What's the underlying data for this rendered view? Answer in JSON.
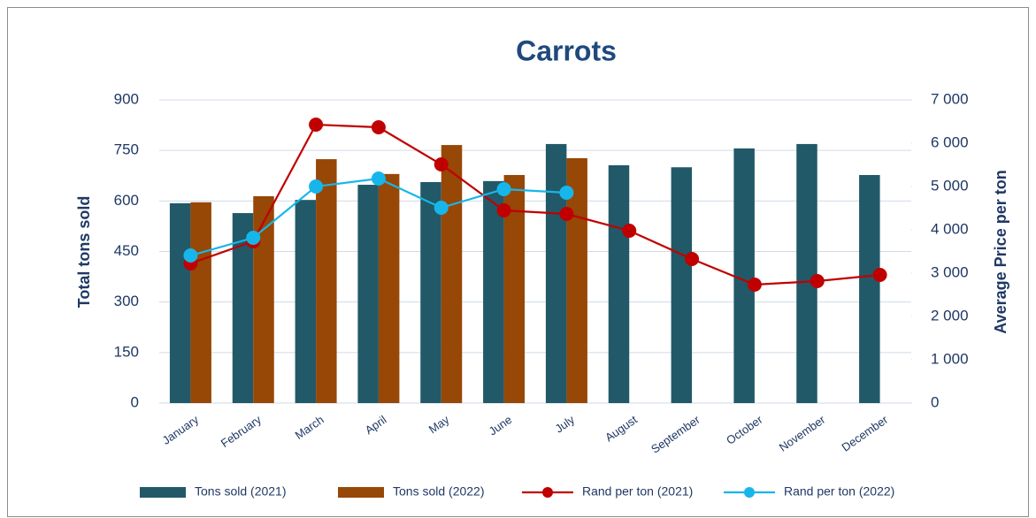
{
  "chart_data": {
    "type": "bar_line",
    "title": "Carrots",
    "ylabel": "Total tons sold",
    "y2label": "Average Price per ton",
    "categories": [
      "January",
      "February",
      "March",
      "April",
      "May",
      "June",
      "July",
      "August",
      "September",
      "October",
      "November",
      "December"
    ],
    "series": [
      {
        "name": "Tons sold (2021)",
        "type": "bar",
        "color": "#215968",
        "values": [
          593,
          564,
          603,
          648,
          656,
          659,
          769,
          706,
          700,
          756,
          769,
          677
        ]
      },
      {
        "name": "Tons sold (2022)",
        "type": "bar",
        "color": "#974706",
        "values": [
          596,
          614,
          724,
          680,
          766,
          677,
          727,
          null,
          null,
          null,
          null,
          null
        ]
      },
      {
        "name": "Rand per ton (2021)",
        "type": "line",
        "axis": "y2",
        "color": "#c00000",
        "values": [
          3224,
          3735,
          6429,
          6367,
          5510,
          4449,
          4367,
          3980,
          3327,
          2735,
          2816,
          2959
        ]
      },
      {
        "name": "Rand per ton (2022)",
        "type": "line",
        "axis": "y2",
        "color": "#17b6ea",
        "values": [
          3408,
          3816,
          5000,
          5184,
          4510,
          4939,
          4857,
          null,
          null,
          null,
          null,
          null
        ]
      }
    ],
    "ylim": [
      0,
      900
    ],
    "yticks": [
      0,
      150,
      300,
      450,
      600,
      750,
      900
    ],
    "y2lim": [
      0,
      7000
    ],
    "y2ticks": [
      0,
      {
        "value": 1000,
        "label": "1 000"
      },
      {
        "value": 2000,
        "label": "2 000"
      },
      {
        "value": 3000,
        "label": "3 000"
      },
      {
        "value": 4000,
        "label": "4 000"
      },
      {
        "value": 5000,
        "label": "5 000"
      },
      {
        "value": 6000,
        "label": "6 000"
      },
      {
        "value": 7000,
        "label": "7 000"
      }
    ],
    "grid": true,
    "legend": "bottom"
  }
}
